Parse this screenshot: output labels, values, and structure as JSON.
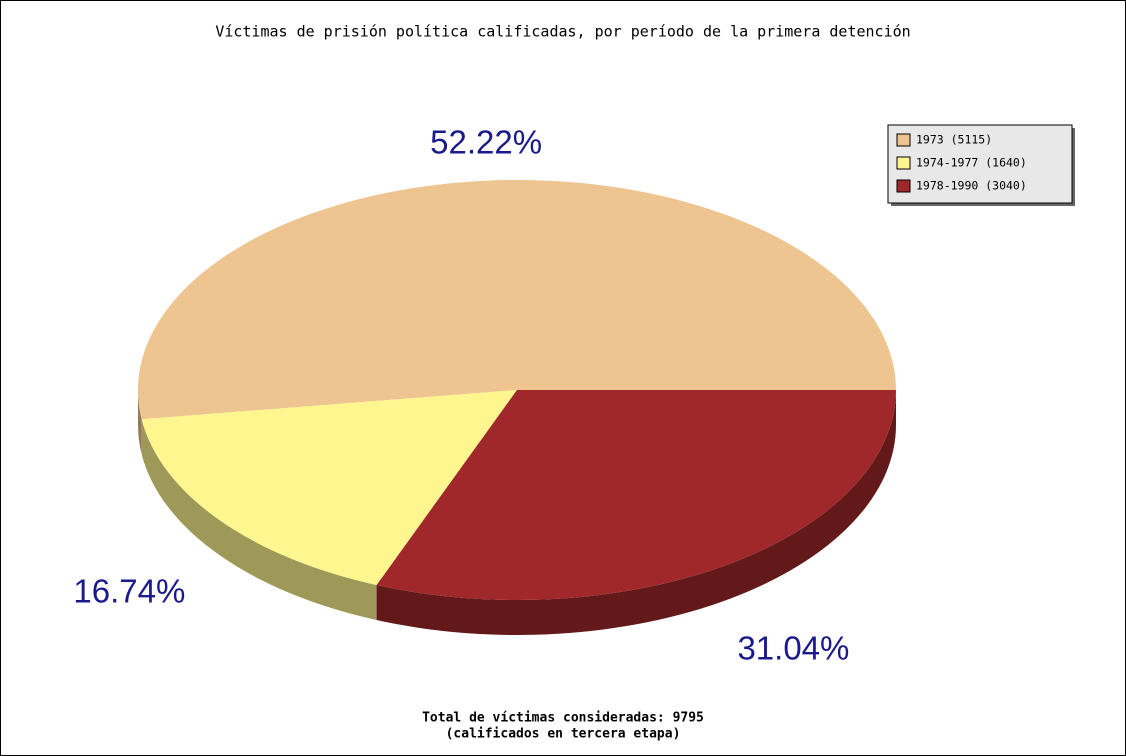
{
  "chart_data": {
    "type": "pie",
    "title": "Víctimas de prisión política calificadas, por período de la primera detención",
    "categories": [
      "1973 (5115)",
      "1974-1977 (1640)",
      "1978-1990 (3040)"
    ],
    "values": [
      52.22,
      16.74,
      31.04
    ],
    "value_labels": [
      "52.22%",
      "16.74%",
      "31.04%"
    ],
    "colors": [
      "#eec591",
      "#fff68f",
      "#a0282a"
    ],
    "legend": "upper right",
    "annotations": [
      "Total de víctimas consideradas: 9795",
      "(calificados en tercera etapa)"
    ]
  }
}
